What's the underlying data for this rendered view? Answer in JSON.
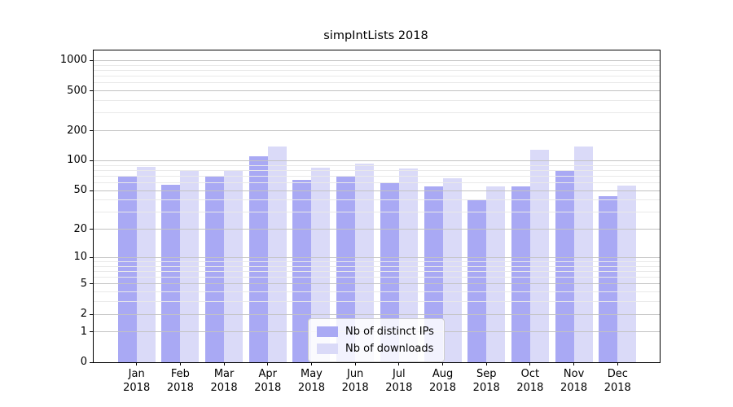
{
  "chart_data": {
    "type": "bar",
    "title": "simpIntLists 2018",
    "categories": [
      "Jan",
      "Feb",
      "Mar",
      "Apr",
      "May",
      "Jun",
      "Jul",
      "Aug",
      "Sep",
      "Oct",
      "Nov",
      "Dec"
    ],
    "year_label": "2018",
    "series": [
      {
        "name": "Nb of distinct IPs",
        "color": "#a9a9f4",
        "values": [
          70,
          57,
          70,
          110,
          64,
          69,
          61,
          55,
          40,
          55,
          80,
          44
        ]
      },
      {
        "name": "Nb of downloads",
        "color": "#dadaf8",
        "values": [
          87,
          80,
          81,
          139,
          85,
          93,
          84,
          67,
          55,
          128,
          140,
          56
        ]
      }
    ],
    "yticks": [
      0,
      1,
      2,
      5,
      10,
      20,
      50,
      100,
      200,
      500,
      1000
    ],
    "yticks_minor": [
      3,
      4,
      6,
      7,
      8,
      9,
      30,
      40,
      60,
      70,
      80,
      90,
      300,
      400,
      600,
      700,
      800,
      900
    ],
    "yscale": "log1p",
    "ylim": [
      0,
      1200
    ],
    "grid": true,
    "legend_position": "lower center",
    "xlabel": "",
    "ylabel": ""
  }
}
